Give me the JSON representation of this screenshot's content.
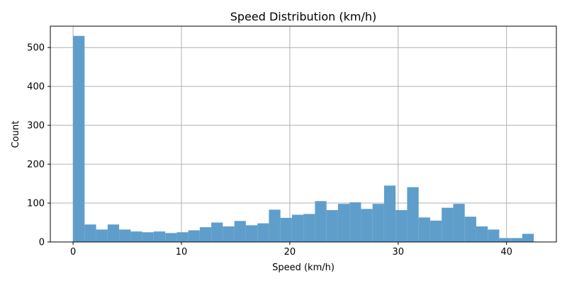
{
  "chart_data": {
    "type": "bar",
    "title": "Speed Distribution (km/h)",
    "xlabel": "Speed (km/h)",
    "ylabel": "Count",
    "xlim": [
      -2.1,
      44.6
    ],
    "ylim": [
      0,
      555
    ],
    "x_ticks": [
      0,
      10,
      20,
      30,
      40
    ],
    "y_ticks": [
      0,
      100,
      200,
      300,
      400,
      500
    ],
    "grid": true,
    "bin_width": 1.063,
    "bin_starts": [
      0,
      1.063,
      2.126,
      3.189,
      4.252,
      5.315,
      6.378,
      7.441,
      8.504,
      9.567,
      10.63,
      11.693,
      12.756,
      13.819,
      14.882,
      15.945,
      17.008,
      18.071,
      19.134,
      20.197,
      21.26,
      22.323,
      23.386,
      24.449,
      25.512,
      26.575,
      27.638,
      28.701,
      29.764,
      30.827,
      31.89,
      32.953,
      34.016,
      35.079,
      36.142,
      37.205,
      38.268,
      39.331,
      40.394,
      41.457
    ],
    "values": [
      530,
      45,
      32,
      45,
      32,
      27,
      25,
      27,
      23,
      25,
      30,
      38,
      50,
      40,
      54,
      43,
      48,
      83,
      62,
      70,
      72,
      105,
      82,
      98,
      102,
      85,
      98,
      145,
      82,
      141,
      63,
      55,
      88,
      98,
      65,
      40,
      32,
      10,
      10,
      21
    ],
    "colors": {
      "bar": "#5f9ecb",
      "grid": "#b0b0b0",
      "axis": "#000000"
    }
  }
}
